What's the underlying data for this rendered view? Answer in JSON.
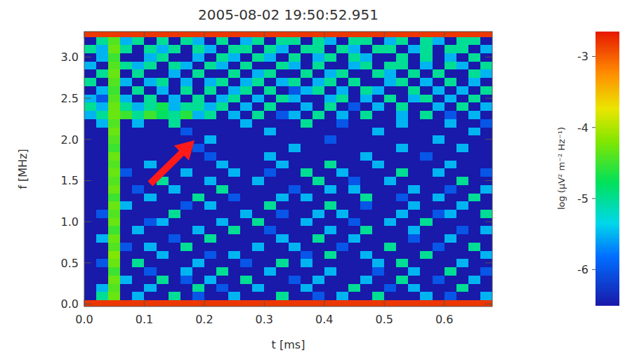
{
  "chart_data": {
    "type": "heatmap",
    "title": "2005-08-02 19:50:52.951",
    "x_label": "t [ms]",
    "y_label": "f [MHz]",
    "xlim": [
      0,
      0.68
    ],
    "ylim": [
      -0.03,
      3.31
    ],
    "xticks": [
      {
        "value": 0,
        "label": "0.0"
      },
      0.1,
      0.2,
      0.3,
      0.4,
      0.5,
      0.6
    ],
    "yticks": [
      {
        "value": 0,
        "label": "0.0"
      },
      0.5,
      {
        "value": 1,
        "label": "1.0"
      },
      1.5,
      {
        "value": 2,
        "label": "2.0"
      },
      2.5,
      {
        "value": 3,
        "label": "3.0"
      }
    ],
    "x_edges": [
      0,
      0.02,
      0.04,
      0.06,
      0.08,
      0.1,
      0.12,
      0.14,
      0.16,
      0.18,
      0.2,
      0.22,
      0.24,
      0.26,
      0.28,
      0.3,
      0.32,
      0.34,
      0.36,
      0.38,
      0.4,
      0.42,
      0.44,
      0.46,
      0.48,
      0.5,
      0.52,
      0.54,
      0.56,
      0.58,
      0.6,
      0.62,
      0.64,
      0.66,
      0.68
    ],
    "y_edges": [
      -0.05,
      0.05,
      0.15,
      0.25,
      0.35,
      0.45,
      0.55,
      0.65,
      0.75,
      0.85,
      0.95,
      1.05,
      1.15,
      1.25,
      1.35,
      1.45,
      1.55,
      1.65,
      1.75,
      1.85,
      1.95,
      2.05,
      2.15,
      2.25,
      2.35,
      2.45,
      2.55,
      2.65,
      2.75,
      2.85,
      2.95,
      3.05,
      3.15,
      3.25,
      3.35
    ],
    "cells": [
      [
        -2.8,
        -2.8,
        -2.8,
        -2.8,
        -2.8,
        -2.8,
        -2.8,
        -2.8,
        -2.8,
        -2.8,
        -2.8,
        -2.8,
        -2.8,
        -2.8,
        -2.8,
        -2.8,
        -2.8,
        -2.8,
        -2.8,
        -2.8,
        -2.8,
        -2.8,
        -2.8,
        -2.8,
        -2.8,
        -2.8,
        -2.8,
        -2.8,
        -2.8,
        -2.8,
        -2.8,
        -2.8,
        -2.8,
        -2.8
      ],
      [
        -6.5,
        -5,
        -4.3,
        -6.5,
        -5.5,
        -6.5,
        -6.5,
        -5,
        -6.5,
        -6,
        -6.5,
        -6.5,
        -5.5,
        -6.5,
        -6.5,
        -6.5,
        -5,
        -6.5,
        -6.5,
        -6,
        -6.5,
        -5.5,
        -6.5,
        -6.5,
        -5,
        -6.5,
        -6.5,
        -6.5,
        -5.5,
        -6.5,
        -6,
        -6.5,
        -6.5,
        -5.5
      ],
      [
        -6.5,
        -5.5,
        -4.4,
        -6.5,
        -6.5,
        -5.5,
        -6.5,
        -6.5,
        -6.5,
        -5,
        -6.5,
        -6,
        -6.5,
        -6.5,
        -5.5,
        -6.5,
        -6.5,
        -6.5,
        -5.5,
        -6.5,
        -6.5,
        -6.5,
        -5,
        -6.5,
        -6.5,
        -6,
        -6.5,
        -5.5,
        -6.5,
        -6.5,
        -6.5,
        -5,
        -6.5,
        -6.5
      ],
      [
        -6.5,
        -6.5,
        -4.3,
        -5.5,
        -6.5,
        -6.5,
        -5,
        -6.5,
        -6,
        -6.5,
        -5.5,
        -6.5,
        -6.5,
        -5,
        -6.5,
        -6.5,
        -6.5,
        -6,
        -6.5,
        -5.5,
        -6.5,
        -6.5,
        -6.5,
        -5.5,
        -6.5,
        -6.5,
        -5,
        -6.5,
        -6.5,
        -6,
        -6.5,
        -6.5,
        -5.5,
        -6.5
      ],
      [
        -6.5,
        -6.5,
        -4.5,
        -6.5,
        -6.5,
        -6,
        -6.5,
        -6.5,
        -5.5,
        -6.5,
        -6.5,
        -5,
        -6.5,
        -6.5,
        -6.5,
        -5.5,
        -6.5,
        -6.5,
        -6.5,
        -6.5,
        -5.5,
        -6.5,
        -6.5,
        -6.5,
        -6,
        -6.5,
        -6.5,
        -5.5,
        -6.5,
        -6.5,
        -5,
        -6.5,
        -6.5,
        -6
      ],
      [
        -6.5,
        -6,
        -4.3,
        -6.5,
        -5,
        -6.5,
        -6.5,
        -6.5,
        -6.5,
        -5.5,
        -6.5,
        -6.5,
        -6.5,
        -6,
        -6.5,
        -6.5,
        -5,
        -6.5,
        -5.5,
        -6.5,
        -6.5,
        -6.5,
        -6.5,
        -6.5,
        -5.5,
        -6.5,
        -5,
        -6.5,
        -6.5,
        -6.5,
        -6.5,
        -5.5,
        -6.5,
        -6.5
      ],
      [
        -6.5,
        -6.5,
        -4.2,
        -6.5,
        -6.5,
        -6.5,
        -5.5,
        -6.5,
        -6.5,
        -6.5,
        -6,
        -6.5,
        -5.5,
        -6.5,
        -6.5,
        -6.5,
        -6.5,
        -6.5,
        -6,
        -6.5,
        -5,
        -6.5,
        -6.5,
        -5.5,
        -6.5,
        -6.5,
        -6.5,
        -6.5,
        -5,
        -6.5,
        -6.5,
        -6.5,
        -6.5,
        -5.5
      ],
      [
        -6.5,
        -6.5,
        -4.4,
        -6,
        -6.5,
        -5.5,
        -6.5,
        -6.5,
        -5,
        -6.5,
        -6.5,
        -6.5,
        -6.5,
        -6.5,
        -5.5,
        -6.5,
        -6.5,
        -5.5,
        -6.5,
        -6.5,
        -6.5,
        -6,
        -6.5,
        -6.5,
        -6.5,
        -5,
        -6.5,
        -6.5,
        -6.5,
        -6,
        -6.5,
        -6.5,
        -5,
        -6.5
      ],
      [
        -6.5,
        -5.5,
        -4.3,
        -6.5,
        -6.5,
        -6.5,
        -6.5,
        -6,
        -6.5,
        -6.5,
        -5,
        -6.5,
        -6.5,
        -6.5,
        -6.5,
        -6.5,
        -5.5,
        -6.5,
        -6.5,
        -5,
        -6.5,
        -6.5,
        -5.5,
        -6.5,
        -6.5,
        -6.5,
        -6.5,
        -6,
        -6.5,
        -6.5,
        -5.5,
        -6.5,
        -6.5,
        -6.5
      ],
      [
        -6.5,
        -6.5,
        -4.5,
        -6.5,
        -5.5,
        -6.5,
        -6.5,
        -6.5,
        -6.5,
        -5.5,
        -6.5,
        -6.5,
        -5,
        -6.5,
        -6.5,
        -6,
        -6.5,
        -6.5,
        -6.5,
        -6.5,
        -5.5,
        -6.5,
        -6.5,
        -5,
        -6.5,
        -6.5,
        -6.5,
        -5.5,
        -6.5,
        -6.5,
        -6.5,
        -6,
        -6.5,
        -5.5
      ],
      [
        -6.5,
        -6.5,
        -4.3,
        -6.5,
        -6.5,
        -6,
        -5.5,
        -6.5,
        -6.5,
        -6.5,
        -6.5,
        -5.5,
        -6.5,
        -6.5,
        -5,
        -6.5,
        -6.5,
        -6.5,
        -5.5,
        -6.5,
        -6.5,
        -6.5,
        -6,
        -6.5,
        -6.5,
        -5.5,
        -6.5,
        -6.5,
        -5,
        -6.5,
        -6.5,
        -6.5,
        -6.5,
        -6.5
      ],
      [
        -6.5,
        -6,
        -4.4,
        -6.5,
        -6.5,
        -6.5,
        -6.5,
        -5,
        -6.5,
        -6.5,
        -6.5,
        -6.5,
        -6.5,
        -5.5,
        -6.5,
        -6.5,
        -6,
        -6.5,
        -6.5,
        -5.5,
        -6.5,
        -5.5,
        -6.5,
        -6.5,
        -6.5,
        -6.5,
        -5.5,
        -6.5,
        -6.5,
        -6,
        -5.5,
        -6.5,
        -6.5,
        -5
      ],
      [
        -6.5,
        -6.5,
        -4.3,
        -5.5,
        -6.5,
        -6.5,
        -6.5,
        -6.5,
        -6,
        -6.5,
        -5.5,
        -6.5,
        -6.5,
        -6.5,
        -6.5,
        -5,
        -6.5,
        -6.5,
        -6.5,
        -6.5,
        -5,
        -6.5,
        -6.5,
        -6,
        -6.5,
        -6.5,
        -6.5,
        -5.5,
        -6.5,
        -6.5,
        -6.5,
        -5.5,
        -6.5,
        -6.5
      ],
      [
        -6.5,
        -6.5,
        -4.5,
        -6.5,
        -6.5,
        -5.5,
        -6.5,
        -6.5,
        -6.5,
        -5,
        -6.5,
        -6.5,
        -6,
        -6.5,
        -6.5,
        -6.5,
        -5.5,
        -6.5,
        -5.5,
        -6.5,
        -6.5,
        -6.5,
        -6.5,
        -5,
        -6.5,
        -6.5,
        -6,
        -6.5,
        -6.5,
        -5.5,
        -6.5,
        -6.5,
        -5,
        -6.5
      ],
      [
        -6.5,
        -6.5,
        -4.3,
        -6.5,
        -6,
        -6.5,
        -6.5,
        -5.5,
        -6.5,
        -6.5,
        -6.5,
        -5,
        -6.5,
        -6.5,
        -6.5,
        -6.5,
        -6.5,
        -6,
        -6.5,
        -6.5,
        -5.5,
        -6.5,
        -5.5,
        -6.5,
        -6.5,
        -6.5,
        -6.5,
        -5.5,
        -6.5,
        -6.5,
        -6,
        -6.5,
        -6.5,
        -5.5
      ],
      [
        -6.5,
        -6.5,
        -4.4,
        -6.5,
        -6.5,
        -6.5,
        -5,
        -6.5,
        -6.5,
        -6.5,
        -5.5,
        -6.5,
        -6.5,
        -6.5,
        -5.5,
        -6.5,
        -6.5,
        -6.5,
        -6.5,
        -5,
        -6.5,
        -6.5,
        -6,
        -6.5,
        -6.5,
        -5.5,
        -6.5,
        -6.5,
        -6.5,
        -6.5,
        -6.5,
        -5,
        -6.5,
        -6.5
      ],
      [
        -6.5,
        -6.5,
        -4.3,
        -6,
        -6.5,
        -6.5,
        -6.5,
        -6.5,
        -5.5,
        -6.5,
        -6.5,
        -6.5,
        -5.5,
        -6.5,
        -6.5,
        -6,
        -6.5,
        -6.5,
        -5,
        -6.5,
        -6.5,
        -5.5,
        -6.5,
        -6.5,
        -6.5,
        -6.5,
        -5,
        -6.5,
        -6.5,
        -5.5,
        -6.5,
        -6.5,
        -6.5,
        -6
      ],
      [
        -6.5,
        -6.5,
        -4.4,
        -6.5,
        -6.5,
        -5.5,
        -6.5,
        -6.5,
        -6.5,
        -6.5,
        -6.5,
        -5.5,
        -6.5,
        -6.5,
        -6.5,
        -6.5,
        -5.5,
        -6.5,
        -6.5,
        -6.5,
        -5,
        -6.5,
        -6.5,
        -6.5,
        -5.5,
        -6.5,
        -6.5,
        -6.5,
        -6.5,
        -6.5,
        -5.5,
        -6.5,
        -6.5,
        -6.5
      ],
      [
        -6.5,
        -6.5,
        -4.3,
        -6.5,
        -6.5,
        -6.5,
        -6.5,
        -6.5,
        -6.5,
        -6.5,
        -6,
        -6.5,
        -6.5,
        -6.5,
        -6.5,
        -5.5,
        -6.5,
        -6.5,
        -6.5,
        -6.5,
        -6.5,
        -6.5,
        -6.5,
        -5.5,
        -6.5,
        -6.5,
        -6.5,
        -6.5,
        -6,
        -6.5,
        -6.5,
        -6.5,
        -6.5,
        -6.5
      ],
      [
        -6.5,
        -6.5,
        -4.5,
        -6.5,
        -6.5,
        -6.5,
        -6.5,
        -6.5,
        -6.5,
        -6,
        -6.5,
        -6.5,
        -6.5,
        -6.5,
        -6.5,
        -6.5,
        -6.5,
        -5.5,
        -6.5,
        -6.5,
        -6.5,
        -6.5,
        -6.5,
        -6.5,
        -6.5,
        -6.5,
        -5.5,
        -6.5,
        -6.5,
        -6.5,
        -6.5,
        -5.5,
        -6.5,
        -6.5
      ],
      [
        -6.5,
        -6.5,
        -4.4,
        -6.5,
        -6.5,
        -6.5,
        -6.5,
        -6.5,
        -6.5,
        -6.5,
        -5.5,
        -6.5,
        -6.5,
        -6.5,
        -6.5,
        -6.5,
        -6.5,
        -6.5,
        -6.5,
        -6.5,
        -6,
        -6.5,
        -6.5,
        -6.5,
        -6.5,
        -6.5,
        -6.5,
        -6.5,
        -6.5,
        -5.5,
        -6.5,
        -6.5,
        -6.5,
        -6.5
      ],
      [
        -6.5,
        -6.5,
        -4.3,
        -6.5,
        -6.5,
        -6.5,
        -6.5,
        -6.5,
        -6,
        -6.5,
        -6.5,
        -6.5,
        -6.5,
        -6.5,
        -6.5,
        -5.5,
        -6.5,
        -6.5,
        -6.5,
        -6.5,
        -6.5,
        -6.5,
        -6.5,
        -6.5,
        -5.5,
        -6.5,
        -6.5,
        -6.5,
        -6.5,
        -6.5,
        -6.5,
        -6.5,
        -5.5,
        -6.5
      ],
      [
        -6.5,
        -5.5,
        -4.4,
        -6.5,
        -5.5,
        -6.5,
        -6.5,
        -5,
        -6.5,
        -6.5,
        -6.5,
        -6.5,
        -6.5,
        -5.5,
        -6.5,
        -6.5,
        -6.5,
        -6.5,
        -5,
        -6.5,
        -6.5,
        -6,
        -6.5,
        -6.5,
        -6.5,
        -6.5,
        -5.5,
        -6.5,
        -6.5,
        -6.5,
        -5.5,
        -6.5,
        -6.5,
        -6
      ],
      [
        -5.5,
        -5,
        -4.3,
        -4.5,
        -5,
        -4.5,
        -4.8,
        -5,
        -4.6,
        -5.5,
        -5,
        -6.5,
        -5.5,
        -6.5,
        -5,
        -6.5,
        -6,
        -5.5,
        -6.5,
        -5,
        -6.5,
        -5.5,
        -6.5,
        -5,
        -6.5,
        -6.5,
        -5.5,
        -6.5,
        -5,
        -6.5,
        -6,
        -6.5,
        -5.5,
        -6.5
      ],
      [
        -5,
        -5.5,
        -4.3,
        -5,
        -5.5,
        -5,
        -4.7,
        -5.5,
        -5,
        -5,
        -5.5,
        -5,
        -6.5,
        -5.5,
        -6.5,
        -5,
        -6.5,
        -6.5,
        -5.5,
        -6.5,
        -5,
        -6.5,
        -6,
        -6.5,
        -5.5,
        -6.5,
        -5,
        -6.5,
        -6.5,
        -5.5,
        -6.5,
        -5,
        -6.5,
        -5.5
      ],
      [
        -5.5,
        -6,
        -4.4,
        -5.5,
        -6.5,
        -5,
        -6.5,
        -5.5,
        -6.5,
        -5,
        -6.5,
        -5.5,
        -5,
        -6.5,
        -5.5,
        -6.5,
        -5,
        -5.5,
        -6.5,
        -6.5,
        -5.5,
        -5,
        -6.5,
        -5.5,
        -6.5,
        -5,
        -6.5,
        -5.5,
        -5,
        -6.5,
        -5.5,
        -6.5,
        -5,
        -6.5
      ],
      [
        -6.5,
        -5.5,
        -4.5,
        -6.5,
        -5,
        -6.5,
        -5.5,
        -6.5,
        -5,
        -6.5,
        -5,
        -6.5,
        -5.5,
        -5,
        -6.5,
        -5,
        -6.5,
        -6,
        -5.5,
        -5,
        -6.5,
        -5.5,
        -6.5,
        -5,
        -5.5,
        -6.5,
        -6.5,
        -5,
        -6.5,
        -5.5,
        -6.5,
        -5.5,
        -6.5,
        -5
      ],
      [
        -5,
        -6.5,
        -4.4,
        -5.5,
        -6.5,
        -5.5,
        -5,
        -6.5,
        -5.5,
        -6.5,
        -5.5,
        -5,
        -6.5,
        -5.5,
        -5,
        -6.5,
        -5.5,
        -5,
        -6.5,
        -5.5,
        -5,
        -6.5,
        -5,
        -6.5,
        -6.5,
        -5.5,
        -5,
        -6.5,
        -5.5,
        -6.5,
        -5,
        -6.5,
        -5.5,
        -6.5
      ],
      [
        -6.5,
        -5,
        -4.3,
        -6.5,
        -5,
        -6.5,
        -6.5,
        -5.5,
        -6.5,
        -5,
        -6.5,
        -6.5,
        -5,
        -6.5,
        -5.5,
        -5,
        -6.5,
        -6.5,
        -5,
        -6.5,
        -5.5,
        -5,
        -6.5,
        -6.5,
        -5,
        -5.5,
        -6.5,
        -5,
        -6.5,
        -5,
        -6.5,
        -6.5,
        -5,
        -5.5
      ],
      [
        -5.5,
        -6.5,
        -4.4,
        -5,
        -5.5,
        -5,
        -6.5,
        -5,
        -5.5,
        -6.5,
        -5,
        -5.5,
        -6.5,
        -5,
        -6.5,
        -6.5,
        -5,
        -5.5,
        -6.5,
        -5,
        -6.5,
        -6.5,
        -5.5,
        -5,
        -6.5,
        -5,
        -5,
        -6.5,
        -5.5,
        -6.5,
        -5,
        -5.5,
        -6.5,
        -5
      ],
      [
        -6.5,
        -5.5,
        -4.5,
        -6.5,
        -6.5,
        -5.5,
        -5,
        -6.5,
        -6.5,
        -5.5,
        -6.5,
        -5,
        -5.5,
        -6.5,
        -5,
        -5.5,
        -6.5,
        -5,
        -6.5,
        -5.5,
        -5,
        -6.5,
        -5,
        -5.5,
        -6.5,
        -6.5,
        -5,
        -6.5,
        -5,
        -6.5,
        -5.5,
        -6.5,
        -5,
        -6.5
      ],
      [
        -5,
        -5.5,
        -4.3,
        -5,
        -6.5,
        -5,
        -5.5,
        -5,
        -6.5,
        -5,
        -5.5,
        -6.5,
        -5,
        -5,
        -6.5,
        -5,
        -5.5,
        -6.5,
        -5,
        -5,
        -6.5,
        -5,
        -5.5,
        -6.5,
        -5,
        -5,
        -6.5,
        -5.5,
        -5,
        -6.5,
        -5,
        -5,
        -6.5,
        -5.5
      ],
      [
        -6.5,
        -5,
        -4.4,
        -5.5,
        -5,
        -6.5,
        -5,
        -6.5,
        -5,
        -5.5,
        -6.5,
        -5,
        -6.5,
        -5.5,
        -5,
        -6.5,
        -5,
        -5,
        -6.5,
        -5,
        -5.5,
        -6.5,
        -5,
        -5,
        -6.5,
        -5.5,
        -5,
        -6.5,
        -5,
        -5.5,
        -6.5,
        -5,
        -5,
        -6.5
      ],
      [
        -2.8,
        -2.8,
        -2.8,
        -2.8,
        -2.8,
        -2.8,
        -2.8,
        -2.8,
        -2.8,
        -2.8,
        -2.8,
        -2.8,
        -2.8,
        -2.8,
        -2.8,
        -2.8,
        -2.8,
        -2.8,
        -2.8,
        -2.8,
        -2.8,
        -2.8,
        -2.8,
        -2.8,
        -2.8,
        -2.8,
        -2.8,
        -2.8,
        -2.8,
        -2.8,
        -2.8,
        -2.8,
        -2.8,
        -2.8
      ]
    ],
    "color_range": [
      -6.5,
      -2.65
    ],
    "color_ticks": [
      -6,
      -5,
      -4,
      -3
    ],
    "color_label": "log (µV² m⁻² Hz⁻¹)"
  }
}
